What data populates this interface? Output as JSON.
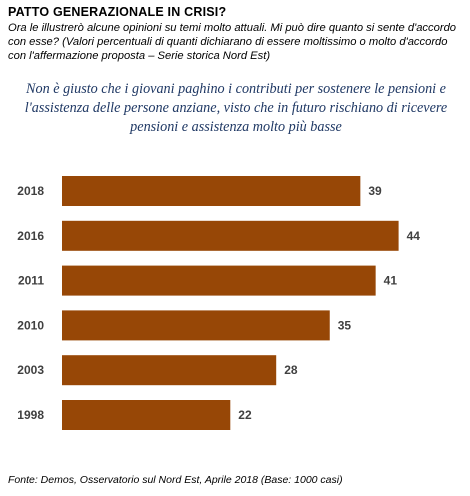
{
  "header": {
    "title": "PATTO GENERAZIONALE IN CRISI?",
    "intro": "Ora le illustrerò alcune opinioni su temi molto attuali. Mi può dire quanto si sente d'accordo con esse? (Valori percentuali di quanti dichiarano di essere moltissimo o molto d'accordo con l'affermazione proposta – Serie storica Nord Est)"
  },
  "question": "Non è giusto che i giovani paghino i contributi per sostenere le pensioni e l'assistenza delle persone anziane, visto che in futuro rischiano di ricevere pensioni e assistenza molto più basse",
  "source": "Fonte: Demos, Osservatorio sul Nord Est, Aprile  2018 (Base: 1000 casi)",
  "colors": {
    "bar": "#974706"
  },
  "chart_data": {
    "type": "bar",
    "orientation": "horizontal",
    "categories": [
      "2018",
      "2016",
      "2011",
      "2010",
      "2003",
      "1998"
    ],
    "values": [
      39,
      44,
      41,
      35,
      28,
      22
    ],
    "title": "",
    "xlabel": "",
    "ylabel": "",
    "xlim": [
      0,
      50
    ],
    "grid": false,
    "legend": "none"
  }
}
